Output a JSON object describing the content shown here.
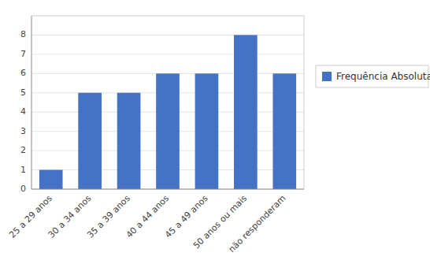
{
  "chart_data": {
    "type": "bar",
    "categories": [
      "25 a 29 anos",
      "30 a 34 anos",
      "35 a 39 anos",
      "40 a 44 anos",
      "45 a 49 anos",
      "50 anos ou mais",
      "não responderam"
    ],
    "series": [
      {
        "name": "Frequência Absoluta",
        "color": "#4472C4",
        "values": [
          1,
          5,
          5,
          6,
          6,
          8,
          6
        ]
      }
    ],
    "ylim": [
      0,
      9
    ],
    "yticks": [
      0,
      1,
      2,
      3,
      4,
      5,
      6,
      7,
      8
    ],
    "grid": true,
    "legend": "right"
  }
}
